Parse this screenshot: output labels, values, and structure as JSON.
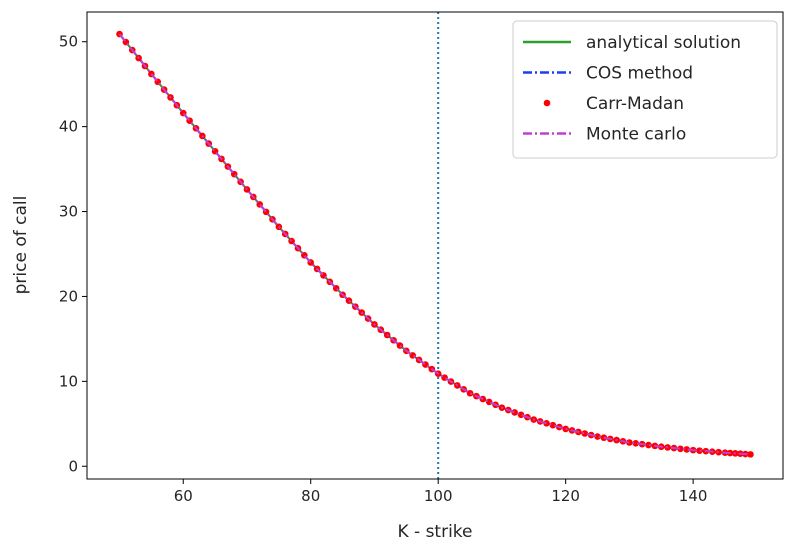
{
  "chart_data": {
    "type": "line",
    "title": "",
    "xlabel": "K - strike",
    "ylabel": "price of call",
    "xlim": [
      44.9,
      154.1
    ],
    "ylim": [
      -1.5,
      53.5
    ],
    "xticks": [
      60,
      80,
      100,
      120,
      140
    ],
    "yticks": [
      0,
      10,
      20,
      30,
      40,
      50
    ],
    "grid": false,
    "legend_position": "top-right",
    "vertical_line": {
      "x": 100,
      "style": "dotted",
      "color": "#1f77b4"
    },
    "x": [
      50,
      55,
      60,
      65,
      70,
      75,
      80,
      85,
      90,
      95,
      100,
      105,
      110,
      115,
      120,
      125,
      130,
      135,
      140,
      145,
      149
    ],
    "series": [
      {
        "name": "analytical solution",
        "style": "solid",
        "color": "#2ca02c",
        "values": [
          50.9,
          46.2,
          41.6,
          37.1,
          32.6,
          28.2,
          24.0,
          20.2,
          16.7,
          13.6,
          10.9,
          8.6,
          6.9,
          5.5,
          4.4,
          3.5,
          2.8,
          2.3,
          1.9,
          1.6,
          1.4
        ]
      },
      {
        "name": "COS method",
        "style": "dashdot",
        "color": "#1f3df5",
        "values": [
          50.9,
          46.2,
          41.6,
          37.1,
          32.6,
          28.2,
          24.0,
          20.2,
          16.7,
          13.6,
          10.9,
          8.6,
          6.9,
          5.5,
          4.4,
          3.5,
          2.8,
          2.3,
          1.9,
          1.6,
          1.4
        ]
      },
      {
        "name": "Carr-Madan",
        "style": "markers",
        "color": "#ff0000",
        "values": [
          50.9,
          46.2,
          41.6,
          37.1,
          32.6,
          28.2,
          24.0,
          20.2,
          16.7,
          13.6,
          10.9,
          8.6,
          6.9,
          5.5,
          4.4,
          3.5,
          2.8,
          2.3,
          1.9,
          1.6,
          1.4
        ]
      },
      {
        "name": "Monte carlo",
        "style": "dashdot",
        "color": "#bf3fd6",
        "values": [
          50.9,
          46.2,
          41.6,
          37.1,
          32.6,
          28.2,
          24.0,
          20.2,
          16.7,
          13.6,
          10.9,
          8.6,
          6.9,
          5.5,
          4.4,
          3.5,
          2.8,
          2.3,
          1.9,
          1.6,
          1.4
        ]
      }
    ]
  }
}
